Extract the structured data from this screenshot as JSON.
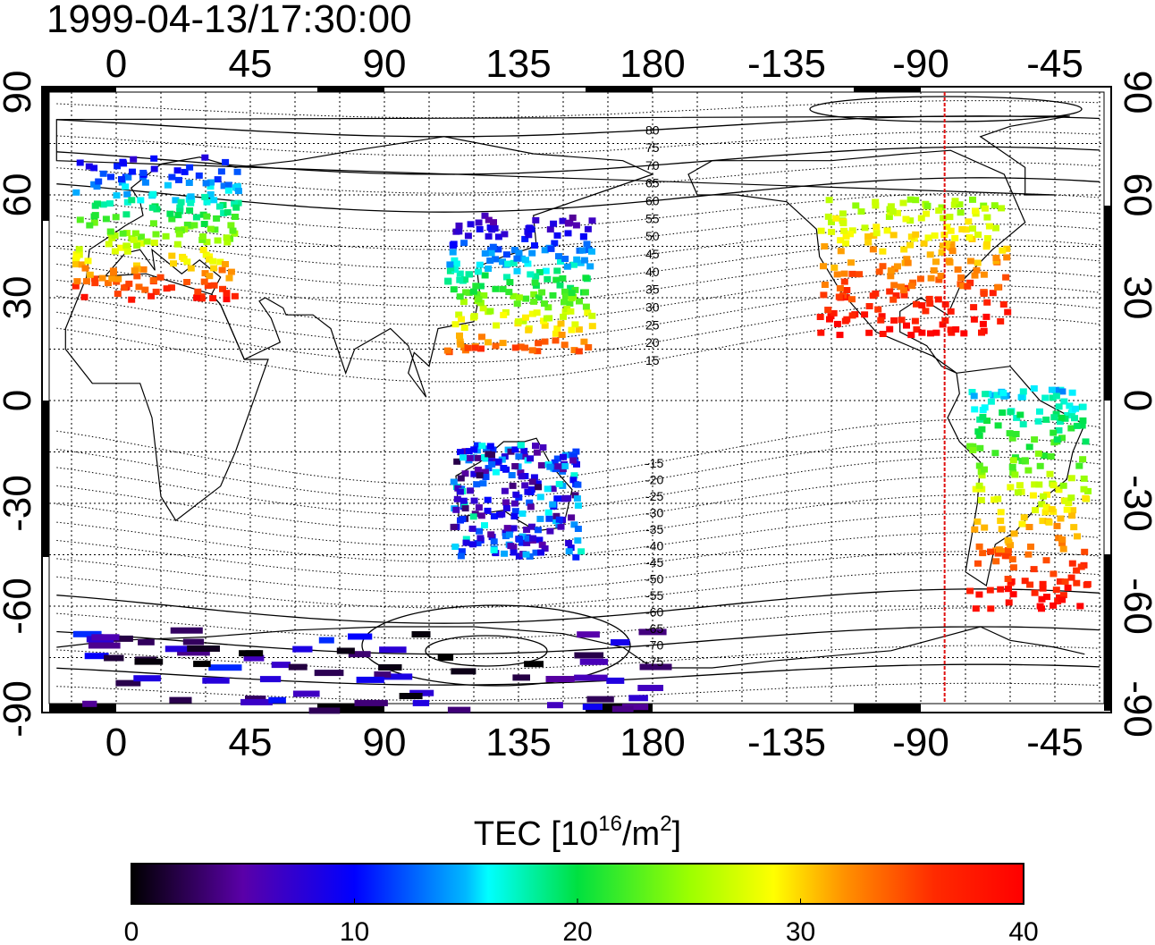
{
  "title": "1999-04-13/17:30:00",
  "top_lon_ticks": [
    "0",
    "45",
    "90",
    "135",
    "180",
    "-135",
    "-90",
    "-45"
  ],
  "bottom_lon_ticks": [
    "0",
    "45",
    "90",
    "135",
    "180",
    "-135",
    "-90",
    "-45"
  ],
  "left_lat_ticks": [
    "90",
    "60",
    "30",
    "0",
    "-30",
    "-60",
    "-90"
  ],
  "right_lat_ticks": [
    "90",
    "60",
    "30",
    "0",
    "-30",
    "-60",
    "-90"
  ],
  "lon_tick_values": [
    0,
    45,
    90,
    135,
    180,
    225,
    270,
    315
  ],
  "lat_tick_values": [
    90,
    60,
    30,
    0,
    -30,
    -60,
    -90
  ],
  "magnetic_latitude_labels": [
    {
      "text": "80",
      "value": 80
    },
    {
      "text": "75",
      "value": 75
    },
    {
      "text": "70",
      "value": 70
    },
    {
      "text": "65",
      "value": 65
    },
    {
      "text": "60",
      "value": 60
    },
    {
      "text": "55",
      "value": 55
    },
    {
      "text": "50",
      "value": 50
    },
    {
      "text": "45",
      "value": 45
    },
    {
      "text": "40",
      "value": 40
    },
    {
      "text": "35",
      "value": 35
    },
    {
      "text": "30",
      "value": 30
    },
    {
      "text": "25",
      "value": 25
    },
    {
      "text": "20",
      "value": 20
    },
    {
      "text": "15",
      "value": 15
    },
    {
      "text": "-15",
      "value": -15
    },
    {
      "text": "-20",
      "value": -20
    },
    {
      "text": "-25",
      "value": -25
    },
    {
      "text": "-30",
      "value": -30
    },
    {
      "text": "-35",
      "value": -35
    },
    {
      "text": "-40",
      "value": -40
    },
    {
      "text": "-45",
      "value": -45
    },
    {
      "text": "-50",
      "value": -50
    },
    {
      "text": "-55",
      "value": -55
    },
    {
      "text": "-60",
      "value": -60
    },
    {
      "text": "-65",
      "value": -65
    },
    {
      "text": "-70",
      "value": -70
    },
    {
      "text": "-75",
      "value": -75
    }
  ],
  "noon_meridian_lon": -82,
  "colorbar": {
    "label": "TEC  [10",
    "label_sup": "16",
    "label_mid": "/m",
    "label_sup2": "2",
    "label_end": "]",
    "ticks": [
      "0",
      "10",
      "20",
      "30",
      "40"
    ],
    "tick_values": [
      0,
      10,
      20,
      30,
      40
    ],
    "range": [
      0,
      40
    ]
  },
  "tec_regions": [
    {
      "name": "europe",
      "lon": [
        -15,
        40
      ],
      "lat": [
        30,
        72
      ],
      "tec": [
        8,
        38
      ]
    },
    {
      "name": "east-asia",
      "lon": [
        110,
        160
      ],
      "lat": [
        15,
        55
      ],
      "tec": [
        5,
        35
      ]
    },
    {
      "name": "north-america",
      "lon": [
        -125,
        -62
      ],
      "lat": [
        20,
        60
      ],
      "tec": [
        25,
        40
      ]
    },
    {
      "name": "south-america",
      "lon": [
        -75,
        -35
      ],
      "lat": [
        -60,
        5
      ],
      "tec": [
        15,
        40
      ]
    },
    {
      "name": "australia",
      "lon": [
        112,
        155
      ],
      "lat": [
        -45,
        -12
      ],
      "tec": [
        3,
        17
      ]
    },
    {
      "name": "antarctica",
      "lon": [
        -20,
        180
      ],
      "lat": [
        -90,
        -65
      ],
      "tec": [
        0,
        10
      ]
    }
  ],
  "colors": {
    "coast": "#000000",
    "grid": "#000000",
    "meridian": "#e01010"
  }
}
